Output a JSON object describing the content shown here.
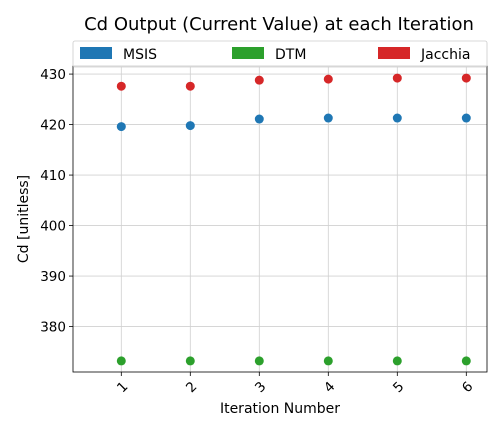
{
  "chart_data": {
    "type": "scatter",
    "title": "Cd Output (Current Value) at each Iteration",
    "xlabel": "Iteration Number",
    "ylabel": "Cd [unitless]",
    "x": [
      1,
      2,
      3,
      4,
      5,
      6
    ],
    "x_tick_labels": [
      "1",
      "2",
      "3",
      "4",
      "5",
      "6"
    ],
    "y_ticks": [
      380,
      390,
      400,
      410,
      420,
      430
    ],
    "y_tick_labels": [
      "380",
      "390",
      "400",
      "410",
      "420",
      "430"
    ],
    "xlim": [
      0.3,
      6.3
    ],
    "ylim": [
      371,
      431.6
    ],
    "grid": true,
    "legend": {
      "placement": "top",
      "columns": 3
    },
    "series": [
      {
        "name": "MSIS",
        "color": "#1f77b4",
        "values": [
          419.6,
          419.8,
          421.1,
          421.3,
          421.3,
          421.3
        ]
      },
      {
        "name": "DTM",
        "color": "#2ca02c",
        "values": [
          373.2,
          373.2,
          373.2,
          373.2,
          373.2,
          373.2
        ]
      },
      {
        "name": "Jacchia",
        "color": "#d62728",
        "values": [
          427.6,
          427.6,
          428.8,
          429.0,
          429.2,
          429.2
        ]
      }
    ]
  }
}
